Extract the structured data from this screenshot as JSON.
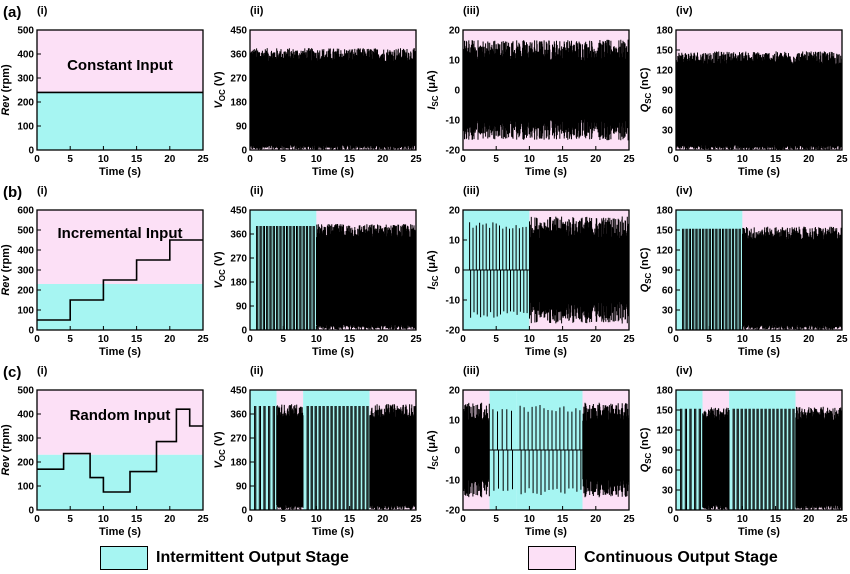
{
  "colors": {
    "intermittent": "#a6f5f2",
    "continuous": "#fce0f6",
    "trace": "#000000"
  },
  "row_labels": [
    "(a)",
    "(b)",
    "(c)"
  ],
  "panel_labels": [
    "(i)",
    "(ii)",
    "(iii)",
    "(iv)"
  ],
  "legend": {
    "intermittent": "Intermittent Output Stage",
    "continuous": "Continuous Output Stage"
  },
  "chart_data": [
    {
      "row": 0,
      "col": 0,
      "type": "line",
      "annotation": "Constant Input",
      "xlabel": "Time (s)",
      "ylabel": "Rev (rpm)",
      "xlim": [
        0,
        25
      ],
      "ylim": [
        0,
        500
      ],
      "xticks": [
        0,
        5,
        10,
        15,
        20,
        25
      ],
      "yticks": [
        0,
        100,
        200,
        300,
        400,
        500
      ],
      "threshold": 240,
      "stages": [],
      "x": [
        0,
        25
      ],
      "y": [
        240,
        240
      ]
    },
    {
      "row": 0,
      "col": 1,
      "type": "line",
      "xlabel": "Time (s)",
      "ylabel": "V_OC (V)",
      "xlim": [
        0,
        25
      ],
      "ylim": [
        0,
        450
      ],
      "xticks": [
        0,
        5,
        10,
        15,
        20,
        25
      ],
      "yticks": [
        0,
        90,
        180,
        270,
        360,
        450
      ],
      "stages": [
        [
          "continuous",
          0,
          25
        ]
      ],
      "signal": {
        "mode": "pulse",
        "high": 375,
        "low": 0,
        "intermittent_pairs": []
      }
    },
    {
      "row": 0,
      "col": 2,
      "type": "line",
      "xlabel": "Time (s)",
      "ylabel": "I_SC (μA)",
      "xlim": [
        0,
        25
      ],
      "ylim": [
        -20,
        20
      ],
      "xticks": [
        0,
        5,
        10,
        15,
        20,
        25
      ],
      "yticks": [
        -20,
        -10,
        0,
        10,
        20
      ],
      "stages": [
        [
          "continuous",
          0,
          25
        ]
      ],
      "signal": {
        "mode": "ac",
        "peak_int": 16,
        "peak_cont": 16,
        "intermittent_pairs": []
      }
    },
    {
      "row": 0,
      "col": 3,
      "type": "line",
      "xlabel": "Time (s)",
      "ylabel": "Q_SC (nC)",
      "xlim": [
        0,
        25
      ],
      "ylim": [
        0,
        180
      ],
      "xticks": [
        0,
        5,
        10,
        15,
        20,
        25
      ],
      "yticks": [
        0,
        30,
        60,
        90,
        120,
        150,
        180
      ],
      "stages": [
        [
          "continuous",
          0,
          25
        ]
      ],
      "signal": {
        "mode": "pulse",
        "high": 145,
        "low": 0,
        "intermittent_pairs": []
      }
    },
    {
      "row": 1,
      "col": 0,
      "type": "line",
      "annotation": "Incremental Input",
      "xlabel": "Time (s)",
      "ylabel": "Rev (rpm)",
      "xlim": [
        0,
        25
      ],
      "ylim": [
        0,
        600
      ],
      "xticks": [
        0,
        5,
        10,
        15,
        20,
        25
      ],
      "yticks": [
        0,
        100,
        200,
        300,
        400,
        500,
        600
      ],
      "threshold": 230,
      "stages": [],
      "x": [
        0,
        5,
        5,
        10,
        10,
        15,
        15,
        20,
        20,
        25
      ],
      "y": [
        50,
        50,
        150,
        150,
        250,
        250,
        350,
        350,
        450,
        450
      ]
    },
    {
      "row": 1,
      "col": 1,
      "type": "line",
      "xlabel": "Time (s)",
      "ylabel": "V_OC (V)",
      "xlim": [
        0,
        25
      ],
      "ylim": [
        0,
        450
      ],
      "xticks": [
        0,
        5,
        10,
        15,
        20,
        25
      ],
      "yticks": [
        0,
        90,
        180,
        270,
        360,
        450
      ],
      "stages": [
        [
          "intermittent",
          0,
          10
        ],
        [
          "continuous",
          10,
          25
        ]
      ],
      "signal": {
        "mode": "pulse",
        "high": 390,
        "low": 0,
        "intermittent_pairs": [
          1.0,
          1.5,
          2.0,
          2.5,
          3.0,
          3.5,
          4.0,
          4.5,
          5.0,
          5.5,
          6.0,
          6.5,
          7.0,
          7.5,
          8.0,
          8.5,
          9.0,
          9.5
        ]
      }
    },
    {
      "row": 1,
      "col": 2,
      "type": "line",
      "xlabel": "Time (s)",
      "ylabel": "I_SC (μA)",
      "xlim": [
        0,
        25
      ],
      "ylim": [
        -20,
        20
      ],
      "xticks": [
        0,
        5,
        10,
        15,
        20,
        25
      ],
      "yticks": [
        -20,
        -10,
        0,
        10,
        20
      ],
      "stages": [
        [
          "intermittent",
          0,
          10
        ],
        [
          "continuous",
          10,
          25
        ]
      ],
      "signal": {
        "mode": "ac",
        "peak_int": 16,
        "peak_cont": 17,
        "intermittent_pairs": [
          1.0,
          1.5,
          2.0,
          2.5,
          3.0,
          3.5,
          4.0,
          4.5,
          5.0,
          5.5,
          6.0,
          6.5,
          7.0,
          7.5,
          8.0,
          8.5,
          9.0,
          9.5
        ]
      }
    },
    {
      "row": 1,
      "col": 3,
      "type": "line",
      "xlabel": "Time (s)",
      "ylabel": "Q_SC (nC)",
      "xlim": [
        0,
        25
      ],
      "ylim": [
        0,
        180
      ],
      "xticks": [
        0,
        5,
        10,
        15,
        20,
        25
      ],
      "yticks": [
        0,
        30,
        60,
        90,
        120,
        150,
        180
      ],
      "stages": [
        [
          "intermittent",
          0,
          10
        ],
        [
          "continuous",
          10,
          25
        ]
      ],
      "signal": {
        "mode": "pulse",
        "high": 152,
        "low": 0,
        "intermittent_pairs": [
          1.0,
          1.5,
          2.0,
          2.5,
          3.0,
          3.5,
          4.0,
          4.5,
          5.0,
          5.5,
          6.0,
          6.5,
          7.0,
          7.5,
          8.0,
          8.5,
          9.0,
          9.5
        ]
      }
    },
    {
      "row": 2,
      "col": 0,
      "type": "line",
      "annotation": "Random Input",
      "xlabel": "Time (s)",
      "ylabel": "Rev (rpm)",
      "xlim": [
        0,
        25
      ],
      "ylim": [
        0,
        500
      ],
      "xticks": [
        0,
        5,
        10,
        15,
        20,
        25
      ],
      "yticks": [
        0,
        100,
        200,
        300,
        400,
        500
      ],
      "threshold": 230,
      "stages": [],
      "x": [
        0,
        4,
        4,
        8,
        8,
        10,
        10,
        14,
        14,
        18,
        18,
        21,
        21,
        23,
        23,
        25
      ],
      "y": [
        170,
        170,
        235,
        235,
        135,
        135,
        75,
        75,
        160,
        160,
        285,
        285,
        420,
        420,
        350,
        350
      ]
    },
    {
      "row": 2,
      "col": 1,
      "type": "line",
      "xlabel": "Time (s)",
      "ylabel": "V_OC (V)",
      "xlim": [
        0,
        25
      ],
      "ylim": [
        0,
        450
      ],
      "xticks": [
        0,
        5,
        10,
        15,
        20,
        25
      ],
      "yticks": [
        0,
        90,
        180,
        270,
        360,
        450
      ],
      "stages": [
        [
          "intermittent",
          0,
          4
        ],
        [
          "continuous",
          4,
          8
        ],
        [
          "intermittent",
          8,
          18
        ],
        [
          "continuous",
          18,
          25
        ]
      ],
      "signal": {
        "mode": "pulse",
        "high": 390,
        "low": 0,
        "intermittent_pairs": [
          0.7,
          1.4,
          2.1,
          2.8,
          3.5,
          8.6,
          9.2,
          9.8,
          10.4,
          11.0,
          11.6,
          12.2,
          12.8,
          13.4,
          14.0,
          14.6,
          15.2,
          15.8,
          16.4,
          17.0,
          17.6
        ]
      }
    },
    {
      "row": 2,
      "col": 2,
      "type": "line",
      "xlabel": "Time (s)",
      "ylabel": "I_SC (μA)",
      "xlim": [
        0,
        25
      ],
      "ylim": [
        -20,
        20
      ],
      "xticks": [
        0,
        5,
        10,
        15,
        20,
        25
      ],
      "yticks": [
        -20,
        -10,
        0,
        10,
        20
      ],
      "stages": [
        [
          "continuous",
          0,
          4
        ],
        [
          "intermittent",
          4,
          8
        ],
        [
          "intermittent",
          8,
          18
        ],
        [
          "continuous",
          18,
          25
        ]
      ],
      "signal": {
        "mode": "ac",
        "peak_int": 15,
        "peak_cont": 15,
        "intermittent_pairs": [
          4.5,
          5.2,
          5.9,
          6.6,
          7.3,
          8.6,
          9.2,
          9.8,
          10.4,
          11.0,
          11.6,
          12.2,
          12.8,
          13.4,
          14.0,
          14.6,
          15.2,
          15.8,
          16.4,
          17.0,
          17.6
        ]
      }
    },
    {
      "row": 2,
      "col": 3,
      "type": "line",
      "xlabel": "Time (s)",
      "ylabel": "Q_SC (nC)",
      "xlim": [
        0,
        25
      ],
      "ylim": [
        0,
        180
      ],
      "xticks": [
        0,
        5,
        10,
        15,
        20,
        25
      ],
      "yticks": [
        0,
        30,
        60,
        90,
        120,
        150,
        180
      ],
      "stages": [
        [
          "intermittent",
          0,
          4
        ],
        [
          "continuous",
          4,
          8
        ],
        [
          "intermittent",
          8,
          18
        ],
        [
          "continuous",
          18,
          25
        ]
      ],
      "signal": {
        "mode": "pulse",
        "high": 152,
        "low": 0,
        "intermittent_pairs": [
          0.7,
          1.4,
          2.1,
          2.8,
          3.5,
          8.6,
          9.2,
          9.8,
          10.4,
          11.0,
          11.6,
          12.2,
          12.8,
          13.4,
          14.0,
          14.6,
          15.2,
          15.8,
          16.4,
          17.0,
          17.6
        ]
      }
    }
  ]
}
